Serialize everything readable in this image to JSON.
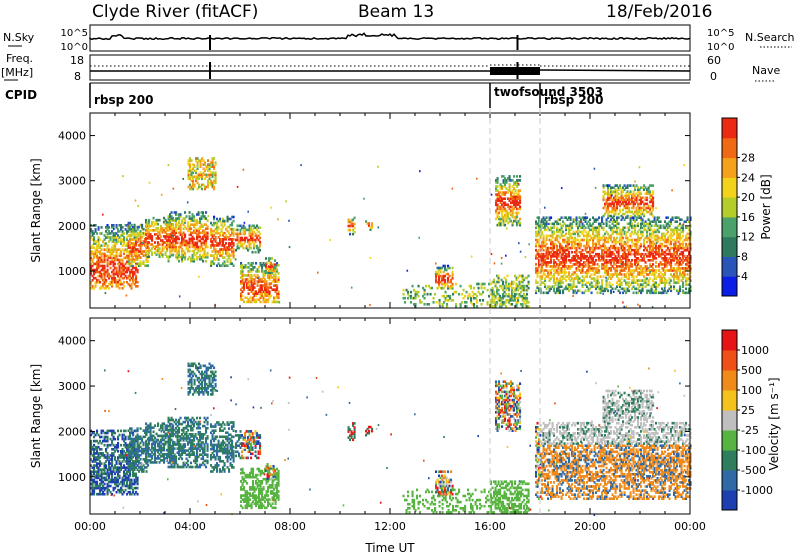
{
  "header": {
    "station": "Clyde River (fitACF)",
    "beam": "Beam 13",
    "date": "18/Feb/2016"
  },
  "strips": {
    "nsky": {
      "label": "N.Sky",
      "ticks": [
        "10^5",
        "10^0"
      ]
    },
    "nsearch": {
      "label": "N.Search",
      "ticks": [
        "10^5",
        "10^0"
      ]
    },
    "freq": {
      "label_line1": "Freq.",
      "label_line2": "[MHz]",
      "ticks": [
        "18",
        "8"
      ]
    },
    "nave": {
      "label": "Nave",
      "ticks": [
        "60",
        "0"
      ]
    },
    "cpid": {
      "label": "CPID",
      "segments": [
        {
          "name": "rbsp 200",
          "start_hour": 0,
          "end_hour": 16.0
        },
        {
          "name": "twofsound 3503",
          "start_hour": 16.0,
          "end_hour": 18.0
        },
        {
          "name": "rbsp 200",
          "start_hour": 18.0,
          "end_hour": 24
        }
      ]
    }
  },
  "chart_data": [
    {
      "type": "heatmap",
      "title": "",
      "xlabel": "",
      "ylabel": "Slant Range [km]",
      "xlim": [
        0,
        24
      ],
      "ylim": [
        180,
        4500
      ],
      "yticks": [
        "1000",
        "2000",
        "3000",
        "4000"
      ],
      "colorbar": {
        "label": "Power [dB]",
        "ticks": [
          "4",
          "8",
          "12",
          "16",
          "20",
          "24",
          "28"
        ],
        "colors": [
          "#0a1ee6",
          "#2a55b8",
          "#2f7a5e",
          "#4aa26a",
          "#b6cc28",
          "#f2d21b",
          "#f4a21b",
          "#f06a15",
          "#ec2a12"
        ]
      }
    },
    {
      "type": "heatmap",
      "title": "",
      "xlabel": "Time UT",
      "ylabel": "Slant Range [km]",
      "xlim": [
        0,
        24
      ],
      "ylim": [
        180,
        4500
      ],
      "xticks": [
        "00:00",
        "04:00",
        "08:00",
        "12:00",
        "16:00",
        "20:00",
        "00:00"
      ],
      "yticks": [
        "1000",
        "2000",
        "3000",
        "4000"
      ],
      "colorbar": {
        "label": "Velocity [m s⁻¹]",
        "ticks": [
          "1000",
          "500",
          "100",
          "25",
          "-25",
          "-100",
          "-500",
          "-1000"
        ],
        "colors": [
          "#1e3fb0",
          "#2f6aa6",
          "#2e7e5e",
          "#58b441",
          "#bfbfbf",
          "#f5c21b",
          "#f08a1a",
          "#ee5016",
          "#e61414"
        ]
      }
    }
  ]
}
